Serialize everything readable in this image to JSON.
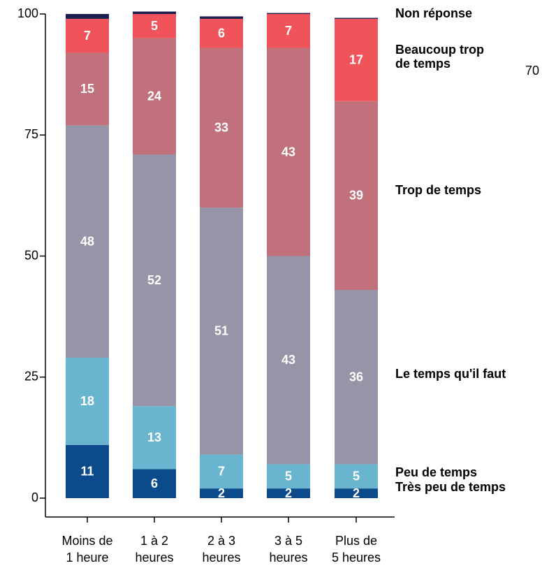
{
  "chart_data": {
    "type": "stacked-bar",
    "categories": [
      [
        "Moins de",
        "1 heure"
      ],
      [
        "1 à 2",
        "heures"
      ],
      [
        "2 à 3",
        "heures"
      ],
      [
        "3 à 5",
        "heures"
      ],
      [
        "Plus de",
        "5 heures"
      ]
    ],
    "series": [
      {
        "name": "Très peu de temps",
        "color": "#0b4a8b",
        "values": [
          11,
          6,
          2,
          2,
          2
        ]
      },
      {
        "name": "Peu de temps",
        "color": "#69b5d0",
        "values": [
          18,
          13,
          7,
          5,
          5
        ]
      },
      {
        "name": "Le temps qu'il faut",
        "color": "#9595a7",
        "values": [
          48,
          52,
          51,
          43,
          36
        ]
      },
      {
        "name": "Trop de temps",
        "color": "#c1717b",
        "values": [
          15,
          24,
          33,
          43,
          39
        ]
      },
      {
        "name": [
          "Beaucoup trop",
          "de temps"
        ],
        "color": "#f0545a",
        "values": [
          7,
          5,
          6,
          7,
          17
        ]
      },
      {
        "name": "Non réponse",
        "color": "#1f1f4f",
        "values": [
          1,
          0.5,
          0.5,
          0.2,
          0.2
        ]
      }
    ],
    "labeled_series": [
      true,
      true,
      true,
      true,
      true,
      false
    ],
    "annotation": "70",
    "ylim": [
      0,
      100
    ],
    "yticks": [
      0,
      25,
      50,
      75,
      100
    ]
  }
}
